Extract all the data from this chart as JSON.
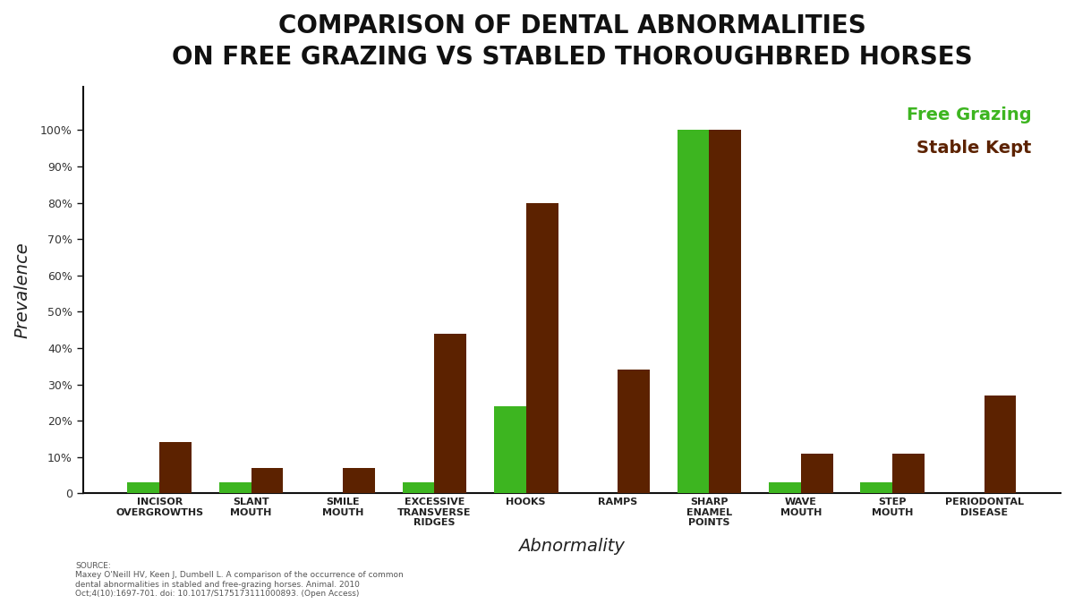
{
  "title": "COMPARISON OF DENTAL ABNORMALITIES\nON FREE GRAZING VS STABLED THOROUGHBRED HORSES",
  "xlabel": "Abnormality",
  "ylabel": "Prevalence",
  "categories": [
    "INCISOR\nOVERGROWTHS",
    "SLANT\nMOUTH",
    "SMILE\nMOUTH",
    "EXCESSIVE\nTRANSVERSE\nRIDGES",
    "HOOKS",
    "RAMPS",
    "SHARP\nENAMEL\nPOINTS",
    "WAVE\nMOUTH",
    "STEP\nMOUTH",
    "PERIODONTAL\nDISEASE"
  ],
  "free_grazing": [
    3,
    3,
    0,
    3,
    24,
    0,
    100,
    3,
    3,
    0
  ],
  "stable_kept": [
    14,
    7,
    7,
    44,
    80,
    34,
    100,
    11,
    11,
    27
  ],
  "free_grazing_color": "#3db520",
  "stable_kept_color": "#5c2200",
  "background_color": "#ffffff",
  "title_fontsize": 20,
  "axis_label_fontsize": 14,
  "tick_fontsize": 8,
  "legend_free_grazing_color": "#3db520",
  "legend_stable_kept_color": "#5c2200",
  "yticks": [
    0,
    10,
    20,
    30,
    40,
    50,
    60,
    70,
    80,
    90,
    100
  ],
  "ytick_labels": [
    "0",
    "10%",
    "20%",
    "30%",
    "40%",
    "50%",
    "60%",
    "70%",
    "80%",
    "90%",
    "100%"
  ],
  "source_text": "SOURCE:\nMaxey O'Neill HV, Keen J, Dumbell L. A comparison of the occurrence of common\ndental abnormalities in stabled and free-grazing horses. Animal. 2010\nOct;4(10):1697-701. doi: 10.1017/S175173111000893. (Open Access)",
  "bar_width": 0.35
}
